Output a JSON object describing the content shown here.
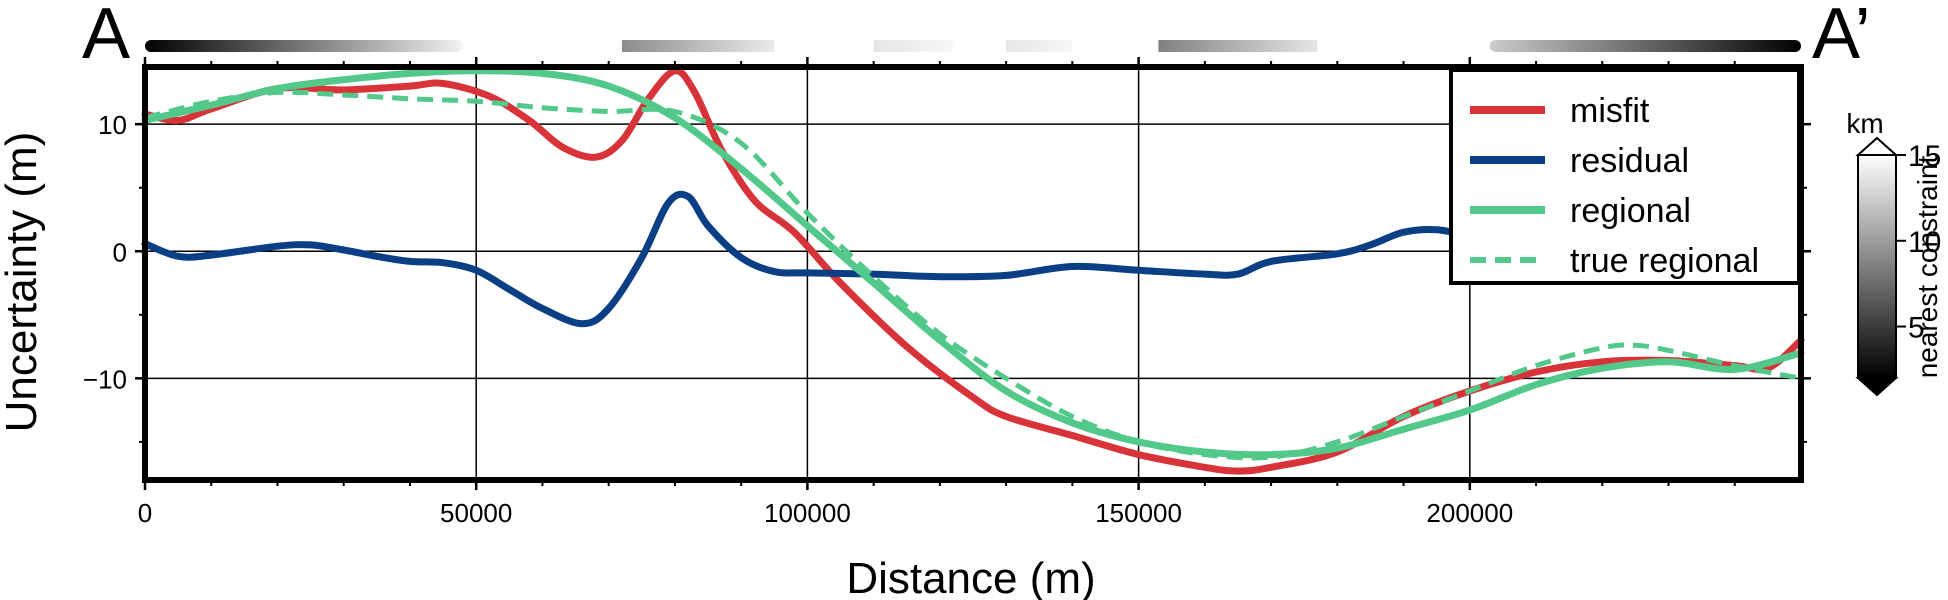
{
  "chart_data": {
    "type": "line",
    "xlabel": "Distance (m)",
    "ylabel": "Uncertainty (m)",
    "xlim": [
      0,
      250000
    ],
    "ylim": [
      -18,
      14.5
    ],
    "xticks": [
      0,
      50000,
      100000,
      150000,
      200000
    ],
    "yticks": [
      -10,
      0,
      10
    ],
    "xtick_labels": [
      "0",
      "50000",
      "100000",
      "150000",
      "200000"
    ],
    "ytick_labels": [
      "−10",
      "0",
      "10"
    ],
    "grid": true,
    "legend_position": "top-right",
    "section_labels": {
      "start": "A",
      "end": "A’"
    },
    "series": [
      {
        "name": "misfit",
        "color": "#d9333a",
        "style": "solid",
        "x": [
          0,
          5000,
          10000,
          20000,
          30000,
          40000,
          45000,
          52000,
          58000,
          63000,
          68000,
          72000,
          76000,
          80000,
          83000,
          87000,
          92000,
          98000,
          105000,
          115000,
          125000,
          130000,
          140000,
          150000,
          160000,
          165000,
          170000,
          180000,
          190000,
          200000,
          210000,
          220000,
          230000,
          240000,
          245000,
          250000
        ],
        "y": [
          10.8,
          10.3,
          11.2,
          12.8,
          12.7,
          13.0,
          13.2,
          12.2,
          10.3,
          8.2,
          7.4,
          8.7,
          12.0,
          14.2,
          12.5,
          8.0,
          4.0,
          1.5,
          -2.5,
          -7.5,
          -11.5,
          -13.0,
          -14.5,
          -16.0,
          -17.0,
          -17.3,
          -17.0,
          -15.8,
          -13.0,
          -11.0,
          -9.5,
          -8.7,
          -8.6,
          -9.0,
          -9.2,
          -7.0
        ]
      },
      {
        "name": "residual",
        "color": "#0a3f85",
        "style": "solid",
        "x": [
          0,
          5000,
          10000,
          20000,
          25000,
          30000,
          35000,
          40000,
          45000,
          50000,
          55000,
          60000,
          66000,
          70000,
          75000,
          79000,
          82000,
          85000,
          90000,
          95000,
          100000,
          110000,
          120000,
          130000,
          140000,
          150000,
          160000,
          165000,
          170000,
          180000,
          185000,
          190000,
          195000,
          200000
        ],
        "y": [
          0.6,
          -0.4,
          -0.3,
          0.4,
          0.5,
          0.1,
          -0.4,
          -0.8,
          -0.9,
          -1.5,
          -3.0,
          -4.5,
          -5.7,
          -4.5,
          -0.5,
          3.8,
          4.3,
          2.0,
          -0.5,
          -1.6,
          -1.7,
          -1.8,
          -2.0,
          -1.9,
          -1.2,
          -1.5,
          -1.8,
          -1.8,
          -0.8,
          -0.2,
          0.5,
          1.5,
          1.7,
          1.2
        ]
      },
      {
        "name": "regional",
        "color": "#52c98a",
        "style": "solid",
        "x": [
          0,
          10000,
          20000,
          30000,
          40000,
          50000,
          60000,
          70000,
          80000,
          90000,
          100000,
          110000,
          120000,
          130000,
          140000,
          150000,
          160000,
          170000,
          180000,
          190000,
          200000,
          210000,
          220000,
          230000,
          240000,
          250000
        ],
        "y": [
          10.3,
          11.5,
          12.8,
          13.5,
          14.0,
          14.2,
          14.0,
          13.0,
          10.5,
          6.5,
          2.0,
          -2.5,
          -7.0,
          -11.0,
          -13.5,
          -15.0,
          -15.8,
          -16.0,
          -15.5,
          -14.0,
          -12.5,
          -10.5,
          -9.2,
          -8.7,
          -9.3,
          -8.0
        ]
      },
      {
        "name": "true regional",
        "color": "#52c98a",
        "style": "dashed",
        "x": [
          0,
          10000,
          20000,
          30000,
          40000,
          50000,
          60000,
          70000,
          80000,
          90000,
          100000,
          110000,
          120000,
          130000,
          140000,
          150000,
          160000,
          170000,
          180000,
          190000,
          200000,
          210000,
          220000,
          225000,
          230000,
          240000,
          250000
        ],
        "y": [
          10.5,
          11.8,
          12.5,
          12.3,
          12.0,
          11.8,
          11.3,
          11.0,
          11.0,
          8.5,
          3.0,
          -2.0,
          -6.5,
          -10.0,
          -13.0,
          -15.0,
          -16.0,
          -16.2,
          -15.0,
          -13.0,
          -11.0,
          -9.0,
          -7.6,
          -7.4,
          -7.8,
          -9.0,
          -10.0
        ]
      }
    ],
    "colorbar": {
      "title": "km",
      "label": "nearest constraint",
      "range": [
        2,
        15
      ],
      "ticks": [
        5,
        10,
        15
      ],
      "tick_labels": [
        "5",
        "10",
        "15"
      ]
    },
    "constraint_strip": [
      {
        "x": [
          0,
          48000
        ],
        "from": 0.0,
        "to": 0.95
      },
      {
        "x": [
          72000,
          95000
        ],
        "from": 0.55,
        "to": 0.92
      },
      {
        "x": [
          110000,
          122000
        ],
        "from": 0.9,
        "to": 0.97
      },
      {
        "x": [
          130000,
          140000
        ],
        "from": 0.9,
        "to": 0.97
      },
      {
        "x": [
          153000,
          177000
        ],
        "from": 0.5,
        "to": 0.9
      },
      {
        "x": [
          203000,
          250000
        ],
        "from": 0.8,
        "to": 0.0
      }
    ]
  }
}
